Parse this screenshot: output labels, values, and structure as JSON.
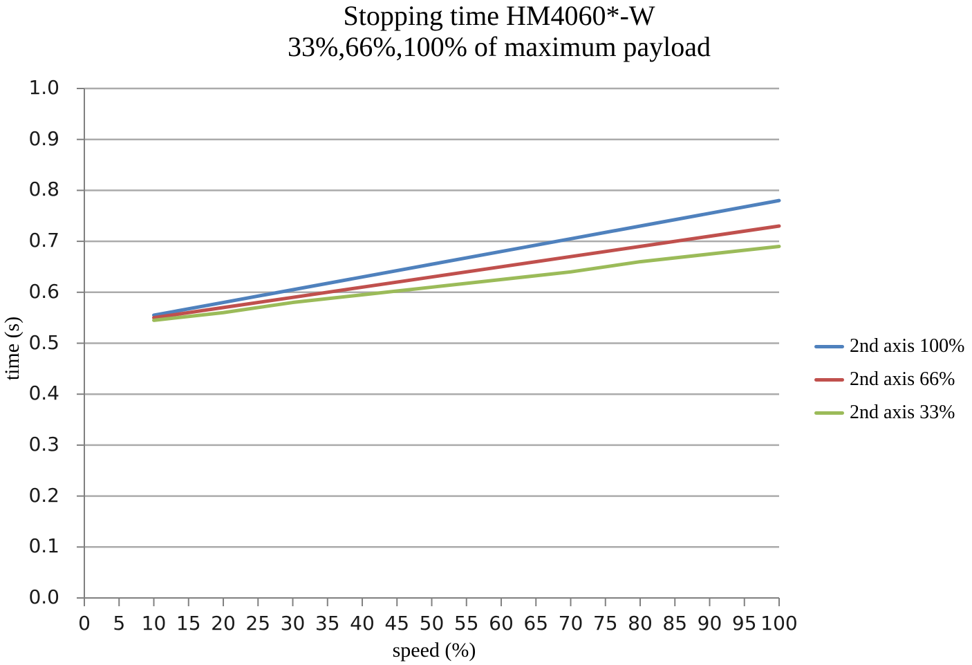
{
  "chart_data": {
    "type": "line",
    "title": "Stopping time HM4060*-W",
    "subtitle": "33%,66%,100% of maximum payload",
    "xlabel": "speed (%)",
    "ylabel": "time (s)",
    "xlim": [
      0,
      100
    ],
    "ylim": [
      0.0,
      1.0
    ],
    "x_ticks": [
      0,
      5,
      10,
      15,
      20,
      25,
      30,
      35,
      40,
      45,
      50,
      55,
      60,
      65,
      70,
      75,
      80,
      85,
      90,
      95,
      100
    ],
    "y_tick_labels": [
      "0.0",
      "0.1",
      "0.2",
      "0.3",
      "0.4",
      "0.5",
      "0.6",
      "0.7",
      "0.8",
      "0.9",
      "1.0"
    ],
    "grid": "horizontal-only",
    "legend_position": "right",
    "x": [
      10,
      20,
      30,
      40,
      50,
      60,
      70,
      80,
      90,
      100
    ],
    "series": [
      {
        "name": "2nd axis 100%",
        "color": "#4F81BD",
        "values": [
          0.555,
          0.58,
          0.605,
          0.63,
          0.655,
          0.68,
          0.705,
          0.73,
          0.755,
          0.78
        ]
      },
      {
        "name": "2nd axis 66%",
        "color": "#C0504D",
        "values": [
          0.55,
          0.57,
          0.59,
          0.61,
          0.63,
          0.65,
          0.67,
          0.69,
          0.71,
          0.73
        ]
      },
      {
        "name": "2nd axis 33%",
        "color": "#9BBB59",
        "values": [
          0.545,
          0.56,
          0.58,
          0.595,
          0.61,
          0.625,
          0.64,
          0.66,
          0.675,
          0.69
        ]
      }
    ],
    "colors": {
      "gridline": "#ABABAB",
      "axis": "#808080",
      "text": "#000000"
    }
  }
}
